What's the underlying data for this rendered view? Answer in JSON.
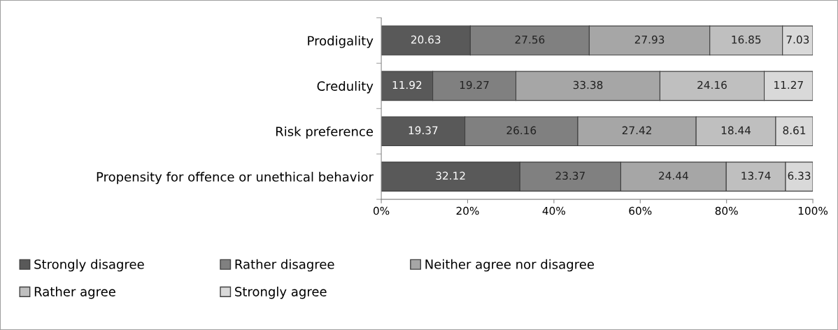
{
  "chart_data": {
    "type": "bar",
    "orientation": "horizontal",
    "stacked": true,
    "categories": [
      "Prodigality",
      "Credulity",
      "Risk preference",
      "Propensity for offence or unethical behavior"
    ],
    "series": [
      {
        "name": "Strongly disagree",
        "color": "#595959",
        "values": [
          20.63,
          11.92,
          19.37,
          32.12
        ]
      },
      {
        "name": "Rather disagree",
        "color": "#808080",
        "values": [
          27.56,
          19.27,
          26.16,
          23.37
        ]
      },
      {
        "name": "Neither agree nor disagree",
        "color": "#a6a6a6",
        "values": [
          27.93,
          33.38,
          27.42,
          24.44
        ]
      },
      {
        "name": "Rather agree",
        "color": "#bfbfbf",
        "values": [
          16.85,
          24.16,
          18.44,
          13.74
        ]
      },
      {
        "name": "Strongly agree",
        "color": "#d9d9d9",
        "values": [
          7.03,
          11.27,
          8.61,
          6.33
        ]
      }
    ],
    "xlim": [
      0,
      100
    ],
    "xticks": [
      {
        "value": 0,
        "label": "0%"
      },
      {
        "value": 20,
        "label": "20%"
      },
      {
        "value": 40,
        "label": "40%"
      },
      {
        "value": 60,
        "label": "60%"
      },
      {
        "value": 80,
        "label": "80%"
      },
      {
        "value": 100,
        "label": "100%"
      }
    ],
    "data_labels": true,
    "legend": "bottom",
    "grid": false
  }
}
